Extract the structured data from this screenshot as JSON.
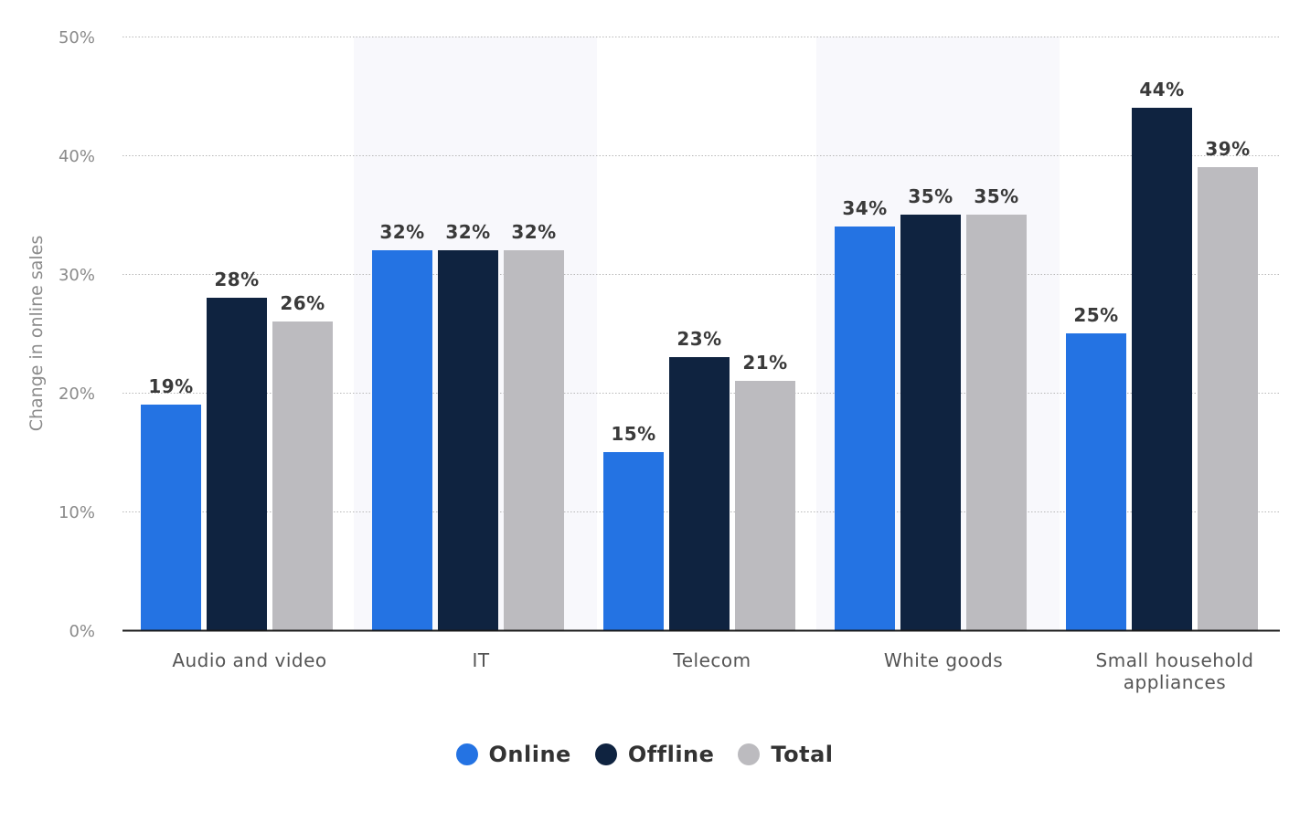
{
  "chart_data": {
    "type": "bar",
    "categories": [
      "Audio and video",
      "IT",
      "Telecom",
      "White goods",
      "Small household appliances"
    ],
    "series": [
      {
        "name": "Online",
        "values": [
          19,
          32,
          15,
          34,
          25
        ],
        "color": "#2473e3"
      },
      {
        "name": "Offline",
        "values": [
          28,
          32,
          23,
          35,
          44
        ],
        "color": "#0f2340"
      },
      {
        "name": "Total",
        "values": [
          26,
          32,
          21,
          35,
          39
        ],
        "color": "#bcbbbf"
      }
    ],
    "data_labels": [
      [
        "19%",
        "32%",
        "15%",
        "34%",
        "25%"
      ],
      [
        "28%",
        "32%",
        "23%",
        "35%",
        "44%"
      ],
      [
        "26%",
        "32%",
        "21%",
        "35%",
        "39%"
      ]
    ],
    "category_labels": [
      [
        "Audio and video"
      ],
      [
        "IT"
      ],
      [
        "Telecom"
      ],
      [
        "White goods"
      ],
      [
        "Small household",
        "appliances"
      ]
    ],
    "ylabel": "Change in online sales",
    "xlabel": "",
    "ylim": [
      0,
      50
    ],
    "yticks": [
      0,
      10,
      20,
      30,
      40,
      50
    ],
    "ytick_labels": [
      "0%",
      "10%",
      "20%",
      "30%",
      "40%",
      "50%"
    ],
    "grid": true,
    "legend_position": "bottom-center",
    "band_color": "#f8f8fc"
  },
  "legend": {
    "items": [
      {
        "label": "Online",
        "color": "#2473e3"
      },
      {
        "label": "Offline",
        "color": "#0f2340"
      },
      {
        "label": "Total",
        "color": "#bcbbbf"
      }
    ]
  }
}
